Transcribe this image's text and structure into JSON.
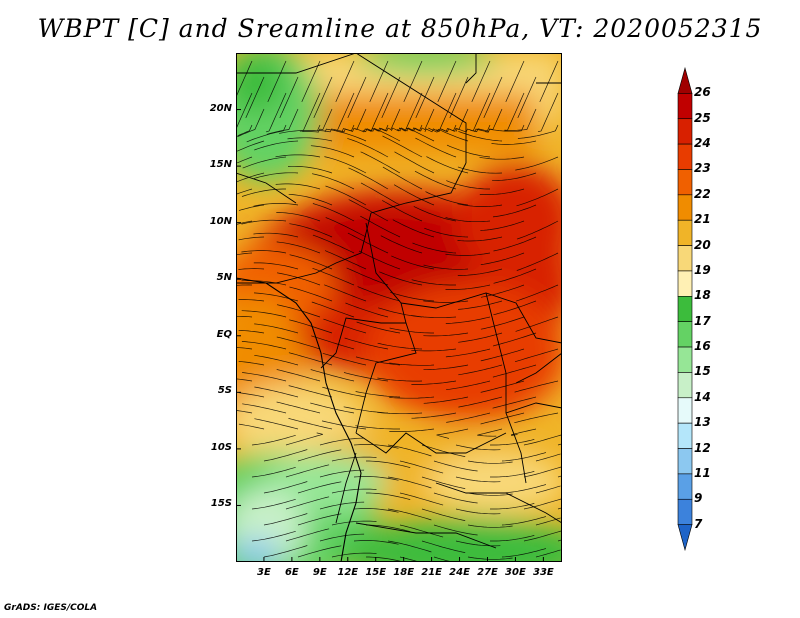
{
  "title": "WBPT [C] and Sreamline at 850hPa, VT: 2020052315",
  "map": {
    "lat_labels": [
      {
        "lat": 20,
        "label": "20N"
      },
      {
        "lat": 15,
        "label": "15N"
      },
      {
        "lat": 10,
        "label": "10N"
      },
      {
        "lat": 5,
        "label": "5N"
      },
      {
        "lat": 0,
        "label": "EQ"
      },
      {
        "lat": -5,
        "label": "5S"
      },
      {
        "lat": -10,
        "label": "10S"
      },
      {
        "lat": -15,
        "label": "15S"
      }
    ],
    "lon_labels": [
      {
        "lon": 3,
        "label": "3E"
      },
      {
        "lon": 6,
        "label": "6E"
      },
      {
        "lon": 9,
        "label": "9E"
      },
      {
        "lon": 12,
        "label": "12E"
      },
      {
        "lon": 15,
        "label": "15E"
      },
      {
        "lon": 18,
        "label": "18E"
      },
      {
        "lon": 21,
        "label": "21E"
      },
      {
        "lon": 24,
        "label": "24E"
      },
      {
        "lon": 27,
        "label": "27E"
      },
      {
        "lon": 30,
        "label": "30E"
      },
      {
        "lon": 33,
        "label": "33E"
      }
    ],
    "lon_range": [
      0,
      35
    ],
    "lat_range": [
      -20,
      25
    ]
  },
  "colorbar": {
    "levels": [
      "26",
      "25",
      "24",
      "23",
      "22",
      "21",
      "20",
      "19",
      "18",
      "17",
      "16",
      "15",
      "14",
      "13",
      "12",
      "11",
      "9",
      "7"
    ],
    "colors": [
      "#a00000",
      "#c00000",
      "#d82000",
      "#e83c00",
      "#f06000",
      "#f08c00",
      "#f0b428",
      "#f8d878",
      "#fff0b4",
      "#3cbc3c",
      "#64d264",
      "#96e696",
      "#c8f0c8",
      "#e6fafa",
      "#b4e6fa",
      "#8cc8f0",
      "#5aa0e6",
      "#3c82dc",
      "#1e64c8"
    ]
  },
  "footer": "GrADS: IGES/COLA"
}
